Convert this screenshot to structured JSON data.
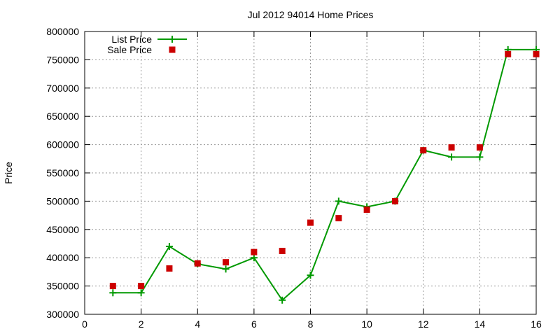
{
  "chart_data": {
    "type": "line",
    "title": "Jul 2012 94014 Home Prices",
    "xlabel": "",
    "ylabel": "Price",
    "xlim": [
      0,
      16
    ],
    "ylim": [
      300000,
      800000
    ],
    "x_ticks": [
      0,
      2,
      4,
      6,
      8,
      10,
      12,
      14,
      16
    ],
    "y_ticks": [
      300000,
      350000,
      400000,
      450000,
      500000,
      550000,
      600000,
      650000,
      700000,
      750000,
      800000
    ],
    "grid": true,
    "legend_position": "top-left",
    "series": [
      {
        "name": "List Price",
        "style": "line-with-plus-markers",
        "color": "#009900",
        "x": [
          1,
          2,
          3,
          4,
          5,
          6,
          7,
          8,
          9,
          10,
          11,
          12,
          13,
          14,
          15,
          16
        ],
        "values": [
          338000,
          338000,
          420000,
          389000,
          380000,
          400000,
          325000,
          369000,
          500000,
          490000,
          500000,
          590000,
          578000,
          578000,
          768000,
          768000
        ]
      },
      {
        "name": "Sale Price",
        "style": "square-markers",
        "color": "#cc0000",
        "x": [
          1,
          2,
          3,
          4,
          5,
          6,
          7,
          8,
          9,
          10,
          11,
          12,
          13,
          14,
          15,
          16
        ],
        "values": [
          350000,
          350000,
          381000,
          390000,
          392000,
          410000,
          412000,
          462000,
          470000,
          485000,
          500000,
          590000,
          595000,
          595000,
          760000,
          760000
        ]
      }
    ]
  }
}
